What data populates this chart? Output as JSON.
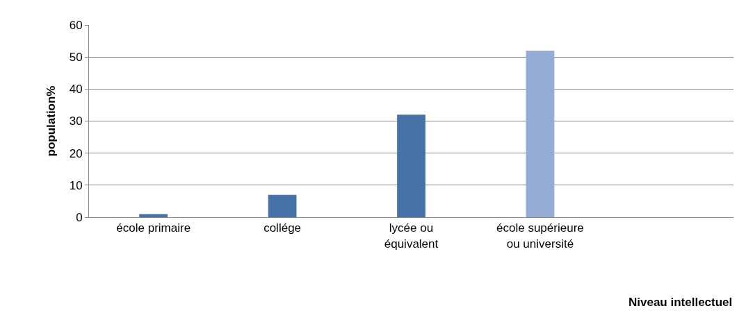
{
  "chart_data": {
    "type": "bar",
    "ylabel": "population%",
    "xlabel": "Niveau intellectuel",
    "categories": [
      "école primaire",
      "collége",
      "lycée ou équivalent",
      "école supérieure ou université",
      null
    ],
    "values": [
      1,
      7,
      32,
      52,
      null
    ],
    "colors": [
      "#4672a8",
      "#4672a8",
      "#4672a8",
      "#95add4",
      "#4672a8"
    ],
    "ylim": [
      0,
      60
    ],
    "yticks": [
      0,
      10,
      20,
      30,
      40,
      50,
      60
    ],
    "grid": "y",
    "legend": false
  }
}
